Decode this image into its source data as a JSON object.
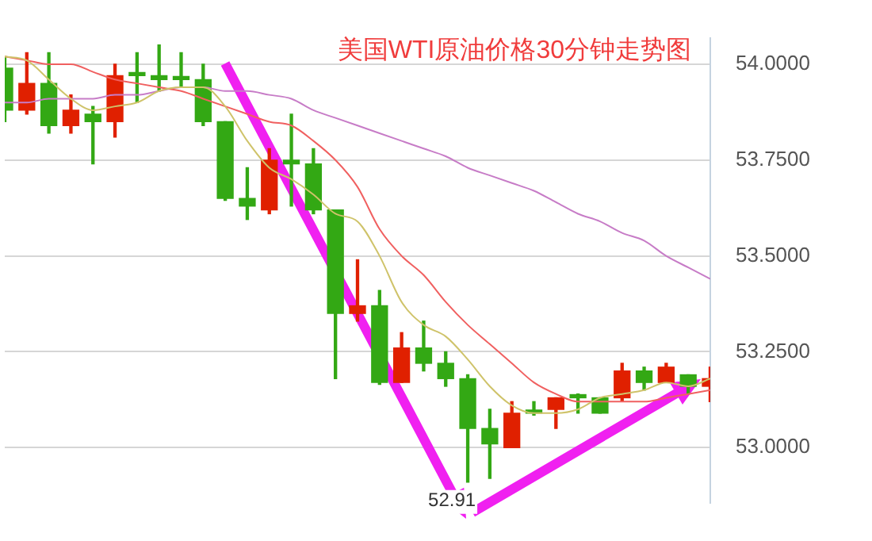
{
  "chart_data": {
    "type": "candlestick",
    "title": "美国WTI原油价格30分钟走势图",
    "categories": [
      null,
      null,
      null,
      null,
      null,
      null,
      null,
      null,
      null,
      null,
      null,
      null,
      null,
      null,
      null,
      null,
      null,
      null,
      null,
      null,
      null,
      null,
      null,
      null,
      null,
      null,
      null,
      null,
      null,
      null,
      null,
      null,
      null
    ],
    "ohlc": [
      [
        53.99,
        54.02,
        53.85,
        53.88
      ],
      [
        53.88,
        54.03,
        53.87,
        53.95
      ],
      [
        53.95,
        54.03,
        53.82,
        53.84
      ],
      [
        53.84,
        53.92,
        53.82,
        53.88
      ],
      [
        53.87,
        53.89,
        53.74,
        53.85
      ],
      [
        53.85,
        54.0,
        53.81,
        53.97
      ],
      [
        53.975,
        54.03,
        53.9,
        53.97
      ],
      [
        53.97,
        54.05,
        53.93,
        53.96
      ],
      [
        53.965,
        54.03,
        53.94,
        53.96
      ],
      [
        53.96,
        54.0,
        53.84,
        53.85
      ],
      [
        53.85,
        53.85,
        53.645,
        53.65
      ],
      [
        53.65,
        53.73,
        53.595,
        53.63
      ],
      [
        53.62,
        53.78,
        53.61,
        53.75
      ],
      [
        53.75,
        53.87,
        53.63,
        53.74
      ],
      [
        53.74,
        53.78,
        53.61,
        53.62
      ],
      [
        53.62,
        53.62,
        53.18,
        53.35
      ],
      [
        53.35,
        53.49,
        53.33,
        53.37
      ],
      [
        53.37,
        53.41,
        53.165,
        53.17
      ],
      [
        53.17,
        53.3,
        53.17,
        53.26
      ],
      [
        53.26,
        53.33,
        53.2,
        53.22
      ],
      [
        53.22,
        53.25,
        53.16,
        53.18
      ],
      [
        53.18,
        53.19,
        52.91,
        53.05
      ],
      [
        53.05,
        53.1,
        52.92,
        53.01
      ],
      [
        53.0,
        53.12,
        53.0,
        53.09
      ],
      [
        53.095,
        53.12,
        53.085,
        53.09
      ],
      [
        53.1,
        53.13,
        53.05,
        53.13
      ],
      [
        53.135,
        53.14,
        53.09,
        53.13
      ],
      [
        53.13,
        53.13,
        53.09,
        53.09
      ],
      [
        53.13,
        53.22,
        53.12,
        53.2
      ],
      [
        53.2,
        53.21,
        53.15,
        53.17
      ],
      [
        53.17,
        53.22,
        53.17,
        53.21
      ],
      [
        53.19,
        53.19,
        53.14,
        53.16
      ],
      [
        53.16,
        53.21,
        53.12,
        53.18
      ]
    ],
    "colors": [
      "#33a814",
      "#e02000",
      "#33a814",
      "#e02000",
      "#33a814",
      "#e02000",
      "#33a814",
      "#33a814",
      "#33a814",
      "#33a814",
      "#33a814",
      "#33a814",
      "#e02000",
      "#33a814",
      "#33a814",
      "#33a814",
      "#e02000",
      "#33a814",
      "#e02000",
      "#33a814",
      "#33a814",
      "#33a814",
      "#33a814",
      "#e02000",
      "#33a814",
      "#e02000",
      "#33a814",
      "#33a814",
      "#e02000",
      "#33a814",
      "#e02000",
      "#33a814",
      "#e02000"
    ],
    "series": [
      {
        "type": "line",
        "color": "#cfc36a",
        "values": [
          54.02,
          54.01,
          53.96,
          53.91,
          53.88,
          53.89,
          53.9,
          53.93,
          53.94,
          53.94,
          53.89,
          53.8,
          53.73,
          53.7,
          53.66,
          53.61,
          53.59,
          53.5,
          53.38,
          53.32,
          53.29,
          53.23,
          53.16,
          53.11,
          53.09,
          53.09,
          53.1,
          53.13,
          53.14,
          53.15,
          53.17,
          53.16,
          53.18
        ]
      },
      {
        "type": "line",
        "color": "#f06060",
        "values": [
          54.02,
          54.01,
          54.0,
          54.0,
          53.98,
          53.96,
          53.95,
          53.94,
          53.93,
          53.91,
          53.89,
          53.87,
          53.85,
          53.84,
          53.8,
          53.75,
          53.68,
          53.57,
          53.5,
          53.45,
          53.38,
          53.32,
          53.27,
          53.22,
          53.17,
          53.14,
          53.12,
          53.12,
          53.12,
          53.12,
          53.13,
          53.14,
          53.15
        ]
      },
      {
        "type": "line",
        "color": "#c77cc7",
        "values": [
          53.9,
          53.9,
          53.91,
          53.91,
          53.91,
          53.92,
          53.92,
          53.93,
          53.94,
          53.94,
          53.93,
          53.93,
          53.92,
          53.91,
          53.88,
          53.86,
          53.84,
          53.82,
          53.8,
          53.78,
          53.76,
          53.73,
          53.71,
          53.69,
          53.67,
          53.64,
          53.61,
          53.59,
          53.56,
          53.54,
          53.5,
          53.47,
          53.44
        ]
      }
    ],
    "ylim": [
      52.855,
      54.069
    ],
    "yticks": [
      {
        "value": 53,
        "label": "53.0000"
      },
      {
        "value": 53.25,
        "label": "53.2500"
      },
      {
        "value": 53.5,
        "label": "53.5000"
      },
      {
        "value": 53.75,
        "label": "53.7500"
      },
      {
        "value": 54,
        "label": "54.0000"
      }
    ],
    "grid": "y",
    "marker": "none",
    "annotations": [
      "52.91"
    ]
  }
}
